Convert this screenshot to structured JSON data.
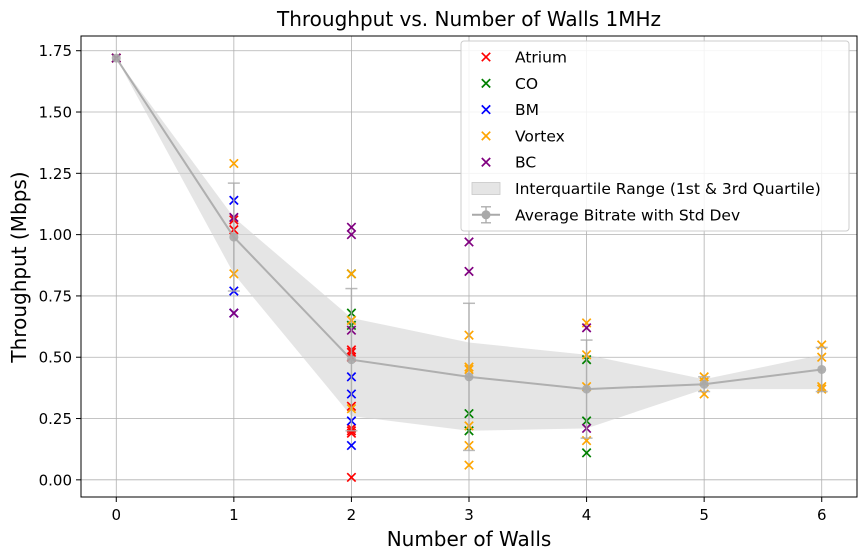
{
  "chart_data": {
    "type": "scatter",
    "title": "Throughput vs. Number of Walls 1MHz",
    "xlabel": "Number of Walls",
    "ylabel": "Throughput (Mbps)",
    "xlim": [
      -0.3,
      6.3
    ],
    "ylim": [
      -0.07,
      1.81
    ],
    "xticks": [
      0,
      1,
      2,
      3,
      4,
      5,
      6
    ],
    "yticks": [
      0.0,
      0.25,
      0.5,
      0.75,
      1.0,
      1.25,
      1.5,
      1.75
    ],
    "ytick_labels": [
      "0.00",
      "0.25",
      "0.50",
      "0.75",
      "1.00",
      "1.25",
      "1.50",
      "1.75"
    ],
    "grid": true,
    "legend_position": "top-right",
    "series": [
      {
        "name": "Atrium",
        "color": "#ff0000",
        "marker": "x",
        "points": [
          [
            0,
            1.72
          ],
          [
            1,
            1.06
          ],
          [
            1,
            1.02
          ],
          [
            2,
            0.52
          ],
          [
            2,
            0.53
          ],
          [
            2,
            0.5
          ],
          [
            2,
            0.3
          ],
          [
            2,
            0.21
          ],
          [
            2,
            0.19
          ],
          [
            2,
            0.2
          ],
          [
            2,
            0.01
          ]
        ]
      },
      {
        "name": "CO",
        "color": "#008000",
        "marker": "x",
        "points": [
          [
            0,
            1.72
          ],
          [
            2,
            0.84
          ],
          [
            2,
            0.68
          ],
          [
            2,
            0.63
          ],
          [
            3,
            0.27
          ],
          [
            3,
            0.2
          ],
          [
            4,
            0.49
          ],
          [
            4,
            0.24
          ],
          [
            4,
            0.11
          ]
        ]
      },
      {
        "name": "BM",
        "color": "#0000ff",
        "marker": "x",
        "points": [
          [
            0,
            1.72
          ],
          [
            1,
            1.14
          ],
          [
            1,
            0.77
          ],
          [
            1,
            0.68
          ],
          [
            2,
            0.42
          ],
          [
            2,
            0.35
          ],
          [
            2,
            0.24
          ],
          [
            2,
            0.14
          ]
        ]
      },
      {
        "name": "Vortex",
        "color": "#ffa500",
        "marker": "x",
        "points": [
          [
            0,
            1.72
          ],
          [
            1,
            1.29
          ],
          [
            1,
            0.84
          ],
          [
            2,
            0.84
          ],
          [
            2,
            0.65
          ],
          [
            2,
            0.29
          ],
          [
            3,
            0.59
          ],
          [
            3,
            0.46
          ],
          [
            3,
            0.45
          ],
          [
            3,
            0.22
          ],
          [
            3,
            0.14
          ],
          [
            3,
            0.06
          ],
          [
            4,
            0.64
          ],
          [
            4,
            0.51
          ],
          [
            4,
            0.38
          ],
          [
            4,
            0.16
          ],
          [
            5,
            0.42
          ],
          [
            5,
            0.4
          ],
          [
            5,
            0.35
          ],
          [
            6,
            0.55
          ],
          [
            6,
            0.5
          ],
          [
            6,
            0.38
          ],
          [
            6,
            0.37
          ]
        ]
      },
      {
        "name": "BC",
        "color": "#800080",
        "marker": "x",
        "points": [
          [
            0,
            1.72
          ],
          [
            1,
            1.07
          ],
          [
            1,
            0.68
          ],
          [
            2,
            1.03
          ],
          [
            2,
            1.0
          ],
          [
            2,
            0.61
          ],
          [
            3,
            0.97
          ],
          [
            3,
            0.85
          ],
          [
            4,
            0.62
          ],
          [
            4,
            0.21
          ]
        ]
      }
    ],
    "average": {
      "name": "Average Bitrate with Std Dev",
      "color": "#a9a9a9",
      "x": [
        0,
        1,
        2,
        3,
        4,
        5,
        6
      ],
      "y": [
        1.72,
        0.99,
        0.49,
        0.42,
        0.37,
        0.39,
        0.45
      ],
      "std": [
        0.0,
        0.22,
        0.29,
        0.3,
        0.2,
        0.03,
        0.09
      ]
    },
    "iqr": {
      "name": "Interquartile Range (1st & 3rd Quartile)",
      "color": "#d3d3d3",
      "x": [
        0,
        1,
        2,
        3,
        4,
        5,
        6
      ],
      "q1": [
        1.72,
        0.84,
        0.26,
        0.2,
        0.21,
        0.37,
        0.37
      ],
      "q3": [
        1.72,
        1.07,
        0.66,
        0.56,
        0.51,
        0.41,
        0.51
      ]
    }
  }
}
